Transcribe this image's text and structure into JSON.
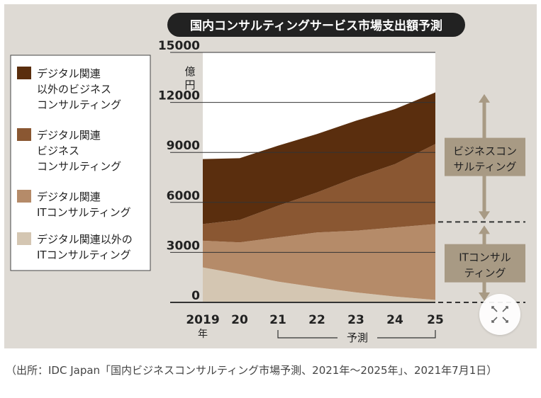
{
  "chart_data": {
    "type": "area",
    "stacked": true,
    "title": "国内コンサルティングサービス市場支出額予測",
    "unit_label": [
      "億",
      "円"
    ],
    "x": [
      2019,
      2020,
      2021,
      2022,
      2023,
      2024,
      2025
    ],
    "x_tick_labels": [
      "2019",
      "20",
      "21",
      "22",
      "23",
      "24",
      "25"
    ],
    "x_tick_sublabel": "年",
    "forecast_label": "予測",
    "yticks": [
      0,
      3000,
      6000,
      9000,
      12000,
      15000
    ],
    "ylim": [
      0,
      15000
    ],
    "series": [
      {
        "name": "デジタル関連以外のITコンサルティング",
        "legend_lines": [
          "デジタル関連以外の",
          "ITコンサルティング"
        ],
        "color": "#d4c6b2",
        "values": [
          2100,
          1700,
          1250,
          900,
          600,
          350,
          150
        ]
      },
      {
        "name": "デジタル関連ITコンサルティング",
        "legend_lines": [
          "デジタル関連",
          "ITコンサルティング"
        ],
        "color": "#b58b69",
        "values": [
          1600,
          1900,
          2650,
          3300,
          3700,
          4150,
          4550
        ]
      },
      {
        "name": "デジタル関連ビジネスコンサルティング",
        "legend_lines": [
          "デジタル関連",
          "ビジネス",
          "コンサルティング"
        ],
        "color": "#8a5732",
        "values": [
          1000,
          1350,
          1900,
          2400,
          3200,
          3800,
          4800
        ]
      },
      {
        "name": "デジタル関連以外のビジネスコンサルティング",
        "legend_lines": [
          "デジタル関連",
          "以外のビジネス",
          "コンサルティング"
        ],
        "color": "#5a2e0e",
        "values": [
          3900,
          3700,
          3600,
          3500,
          3400,
          3300,
          3100
        ]
      }
    ],
    "legend_order": [
      3,
      2,
      1,
      0
    ],
    "brackets": [
      {
        "label_lines": [
          "ビジネスコン",
          "サルティング"
        ],
        "range": [
          4700,
          12500
        ]
      },
      {
        "label_lines": [
          "ITコンサル",
          "ティング"
        ],
        "range": [
          0,
          4700
        ]
      }
    ]
  },
  "source_note": "（出所：IDC Japan「国内ビジネスコンサルティング市場予測、2021年～2025年」、2021年7月1日）"
}
